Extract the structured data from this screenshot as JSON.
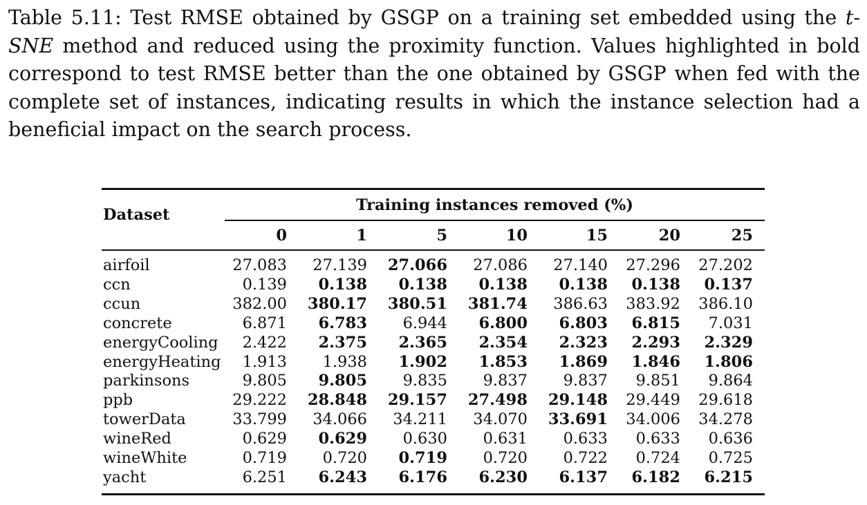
{
  "caption": {
    "part1": "Table 5.11: Test RMSE obtained by GSGP on a training set embedded using the ",
    "method": "t-SNE",
    "part2": " method and reduced using the proximity function. Values highlighted in bold correspond to test RMSE better than the one obtained by GSGP when fed with the complete set of instances, indicating results in which the instance selection had a beneficial impact on the search process."
  },
  "table": {
    "dataset_header": "Dataset",
    "group_header": "Training instances removed (%)",
    "columns": [
      "0",
      "1",
      "5",
      "10",
      "15",
      "20",
      "25"
    ],
    "rows": [
      {
        "name": "airfoil",
        "values": [
          "27.083",
          "27.139",
          "27.066",
          "27.086",
          "27.140",
          "27.296",
          "27.202"
        ],
        "bold": [
          false,
          false,
          true,
          false,
          false,
          false,
          false
        ]
      },
      {
        "name": "ccn",
        "values": [
          "0.139",
          "0.138",
          "0.138",
          "0.138",
          "0.138",
          "0.138",
          "0.137"
        ],
        "bold": [
          false,
          true,
          true,
          true,
          true,
          true,
          true
        ]
      },
      {
        "name": "ccun",
        "values": [
          "382.00",
          "380.17",
          "380.51",
          "381.74",
          "386.63",
          "383.92",
          "386.10"
        ],
        "bold": [
          false,
          true,
          true,
          true,
          false,
          false,
          false
        ]
      },
      {
        "name": "concrete",
        "values": [
          "6.871",
          "6.783",
          "6.944",
          "6.800",
          "6.803",
          "6.815",
          "7.031"
        ],
        "bold": [
          false,
          true,
          false,
          true,
          true,
          true,
          false
        ]
      },
      {
        "name": "energyCooling",
        "values": [
          "2.422",
          "2.375",
          "2.365",
          "2.354",
          "2.323",
          "2.293",
          "2.329"
        ],
        "bold": [
          false,
          true,
          true,
          true,
          true,
          true,
          true
        ]
      },
      {
        "name": "energyHeating",
        "values": [
          "1.913",
          "1.938",
          "1.902",
          "1.853",
          "1.869",
          "1.846",
          "1.806"
        ],
        "bold": [
          false,
          false,
          true,
          true,
          true,
          true,
          true
        ]
      },
      {
        "name": "parkinsons",
        "values": [
          "9.805",
          "9.805",
          "9.835",
          "9.837",
          "9.837",
          "9.851",
          "9.864"
        ],
        "bold": [
          false,
          true,
          false,
          false,
          false,
          false,
          false
        ]
      },
      {
        "name": "ppb",
        "values": [
          "29.222",
          "28.848",
          "29.157",
          "27.498",
          "29.148",
          "29.449",
          "29.618"
        ],
        "bold": [
          false,
          true,
          true,
          true,
          true,
          false,
          false
        ]
      },
      {
        "name": "towerData",
        "values": [
          "33.799",
          "34.066",
          "34.211",
          "34.070",
          "33.691",
          "34.006",
          "34.278"
        ],
        "bold": [
          false,
          false,
          false,
          false,
          true,
          false,
          false
        ]
      },
      {
        "name": "wineRed",
        "values": [
          "0.629",
          "0.629",
          "0.630",
          "0.631",
          "0.633",
          "0.633",
          "0.636"
        ],
        "bold": [
          false,
          true,
          false,
          false,
          false,
          false,
          false
        ]
      },
      {
        "name": "wineWhite",
        "values": [
          "0.719",
          "0.720",
          "0.719",
          "0.720",
          "0.722",
          "0.724",
          "0.725"
        ],
        "bold": [
          false,
          false,
          true,
          false,
          false,
          false,
          false
        ]
      },
      {
        "name": "yacht",
        "values": [
          "6.251",
          "6.243",
          "6.176",
          "6.230",
          "6.137",
          "6.182",
          "6.215"
        ],
        "bold": [
          false,
          true,
          true,
          true,
          true,
          true,
          true
        ]
      }
    ]
  }
}
